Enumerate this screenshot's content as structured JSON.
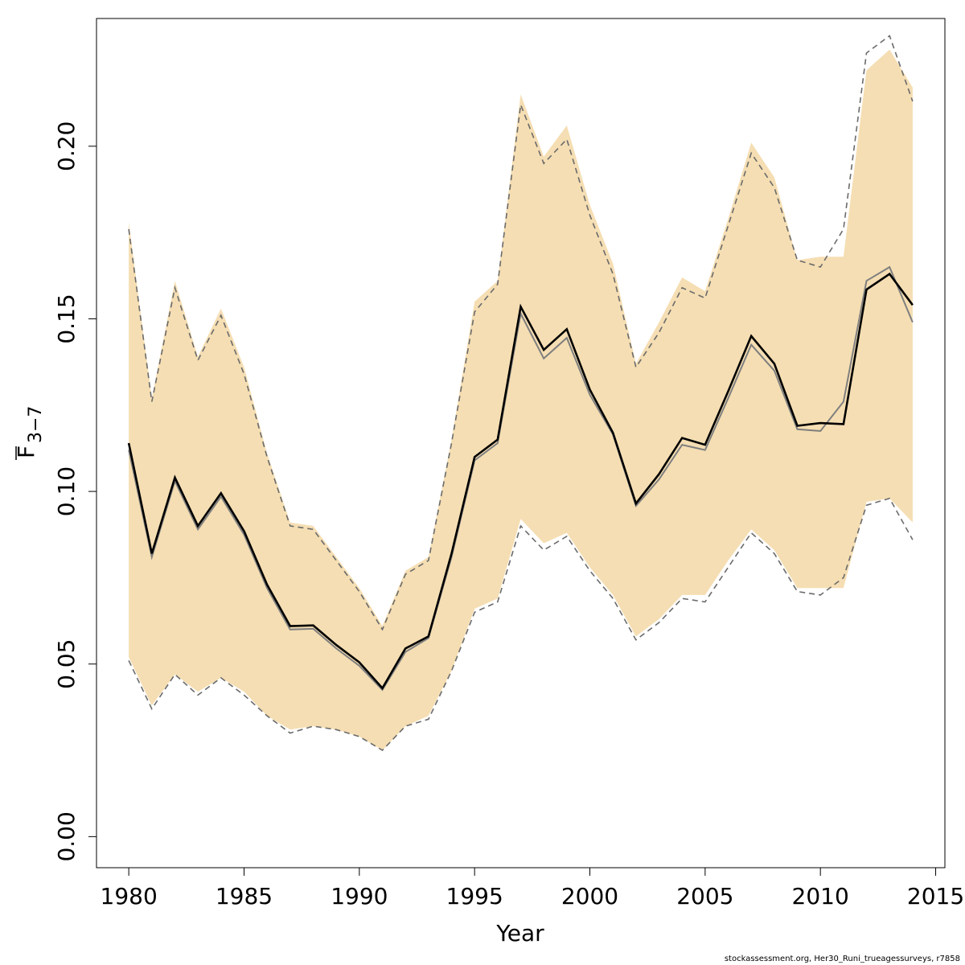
{
  "chart_data": {
    "type": "area",
    "xlabel": "Year",
    "ylabel_main": "F",
    "ylabel_sub": "3−7",
    "xlim": [
      1978.6,
      2015.4
    ],
    "ylim": [
      -0.009,
      0.237
    ],
    "x_ticks": [
      1980,
      1985,
      1990,
      1995,
      2000,
      2005,
      2010,
      2015
    ],
    "y_ticks": [
      0.0,
      0.05,
      0.1,
      0.15,
      0.2
    ],
    "y_tick_labels": [
      "0.00",
      "0.05",
      "0.10",
      "0.15",
      "0.20"
    ],
    "grid": false,
    "colors": {
      "band": "#f5deb3",
      "estimate": "#000000",
      "comparison": "#7f7f7f",
      "ci": "#6b6b6b"
    },
    "x": [
      1980,
      1981,
      1982,
      1983,
      1984,
      1985,
      1986,
      1987,
      1988,
      1989,
      1990,
      1991,
      1992,
      1993,
      1994,
      1995,
      1996,
      1997,
      1998,
      1999,
      2000,
      2001,
      2002,
      2003,
      2004,
      2005,
      2006,
      2007,
      2008,
      2009,
      2010,
      2011,
      2012,
      2013,
      2014
    ],
    "series": [
      {
        "role": "band_upper",
        "values": [
          0.178,
          0.127,
          0.161,
          0.139,
          0.153,
          0.136,
          0.111,
          0.091,
          0.09,
          0.081,
          0.072,
          0.061,
          0.077,
          0.081,
          0.115,
          0.155,
          0.161,
          0.215,
          0.197,
          0.206,
          0.183,
          0.166,
          0.137,
          0.149,
          0.162,
          0.158,
          0.179,
          0.201,
          0.191,
          0.167,
          0.168,
          0.168,
          0.222,
          0.228,
          0.217
        ]
      },
      {
        "role": "band_lower",
        "values": [
          0.052,
          0.038,
          0.047,
          0.042,
          0.046,
          0.042,
          0.035,
          0.031,
          0.032,
          0.031,
          0.029,
          0.025,
          0.032,
          0.035,
          0.048,
          0.066,
          0.069,
          0.092,
          0.085,
          0.088,
          0.078,
          0.07,
          0.058,
          0.063,
          0.07,
          0.07,
          0.08,
          0.089,
          0.083,
          0.072,
          0.072,
          0.072,
          0.097,
          0.098,
          0.091
        ]
      },
      {
        "role": "estimate",
        "values": [
          0.114,
          0.082,
          0.104,
          0.09,
          0.0995,
          0.0885,
          0.073,
          0.061,
          0.0612,
          0.0555,
          0.0505,
          0.043,
          0.0545,
          0.058,
          0.082,
          0.11,
          0.115,
          0.1535,
          0.141,
          0.147,
          0.1295,
          0.117,
          0.0965,
          0.105,
          0.1155,
          0.1135,
          0.129,
          0.145,
          0.137,
          0.119,
          0.1198,
          0.1195,
          0.1585,
          0.163,
          0.154
        ]
      },
      {
        "role": "comparison",
        "values": [
          0.112,
          0.081,
          0.103,
          0.089,
          0.0985,
          0.0875,
          0.072,
          0.06,
          0.0602,
          0.0545,
          0.0495,
          0.0425,
          0.0535,
          0.0575,
          0.081,
          0.109,
          0.114,
          0.1515,
          0.1385,
          0.1445,
          0.128,
          0.1165,
          0.0958,
          0.1035,
          0.1135,
          0.112,
          0.127,
          0.1425,
          0.135,
          0.118,
          0.1175,
          0.126,
          0.161,
          0.165,
          0.149
        ]
      },
      {
        "role": "ci_upper",
        "values": [
          0.176,
          0.126,
          0.159,
          0.138,
          0.151,
          0.134,
          0.11,
          0.09,
          0.089,
          0.08,
          0.071,
          0.06,
          0.076,
          0.08,
          0.114,
          0.152,
          0.16,
          0.212,
          0.195,
          0.202,
          0.18,
          0.163,
          0.136,
          0.146,
          0.159,
          0.156,
          0.177,
          0.198,
          0.188,
          0.167,
          0.165,
          0.176,
          0.227,
          0.232,
          0.213
        ]
      },
      {
        "role": "ci_lower",
        "values": [
          0.051,
          0.037,
          0.047,
          0.041,
          0.046,
          0.041,
          0.035,
          0.03,
          0.032,
          0.031,
          0.029,
          0.025,
          0.032,
          0.034,
          0.048,
          0.065,
          0.068,
          0.09,
          0.083,
          0.087,
          0.077,
          0.069,
          0.057,
          0.062,
          0.069,
          0.068,
          0.078,
          0.088,
          0.082,
          0.071,
          0.07,
          0.075,
          0.096,
          0.098,
          0.086
        ]
      }
    ]
  },
  "footer": "stockassessment.org, Her30_Runi_trueagessurveys, r7858"
}
